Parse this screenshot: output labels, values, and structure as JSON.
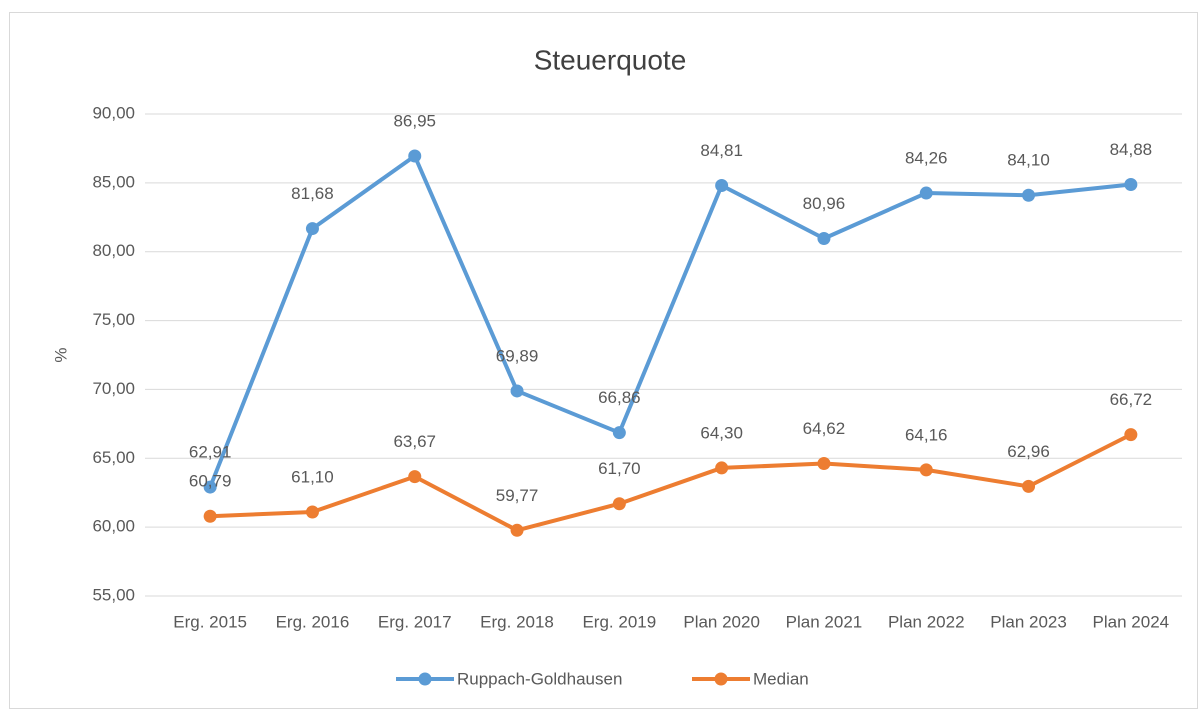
{
  "chart_data": {
    "type": "line",
    "title": "Steuerquote",
    "y_label": "%",
    "categories": [
      "Erg. 2015",
      "Erg. 2016",
      "Erg. 2017",
      "Erg. 2018",
      "Erg. 2019",
      "Plan 2020",
      "Plan 2021",
      "Plan 2022",
      "Plan 2023",
      "Plan 2024"
    ],
    "series": [
      {
        "name": "Ruppach-Goldhausen",
        "color": "#5b9bd5",
        "values": [
          62.91,
          81.68,
          86.95,
          69.89,
          66.86,
          84.81,
          80.96,
          84.26,
          84.1,
          84.88
        ],
        "value_labels": [
          "62,91",
          "81,68",
          "86,95",
          "69,89",
          "66,86",
          "84,81",
          "80,96",
          "84,26",
          "84,10",
          "84,88"
        ]
      },
      {
        "name": "Median",
        "color": "#ed7d31",
        "values": [
          60.79,
          61.1,
          63.67,
          59.77,
          61.7,
          64.3,
          64.62,
          64.16,
          62.96,
          66.72
        ],
        "value_labels": [
          "60,79",
          "61,10",
          "63,67",
          "59,77",
          "61,70",
          "64,30",
          "64,62",
          "64,16",
          "62,96",
          "66,72"
        ]
      }
    ],
    "ylim": [
      55,
      90
    ],
    "yticks": [
      {
        "value": 55,
        "label": "55,00"
      },
      {
        "value": 60,
        "label": "60,00"
      },
      {
        "value": 65,
        "label": "65,00"
      },
      {
        "value": 70,
        "label": "70,00"
      },
      {
        "value": 75,
        "label": "75,00"
      },
      {
        "value": 80,
        "label": "80,00"
      },
      {
        "value": 85,
        "label": "85,00"
      },
      {
        "value": 90,
        "label": "90,00"
      }
    ],
    "grid": true,
    "legend": "bottom"
  }
}
